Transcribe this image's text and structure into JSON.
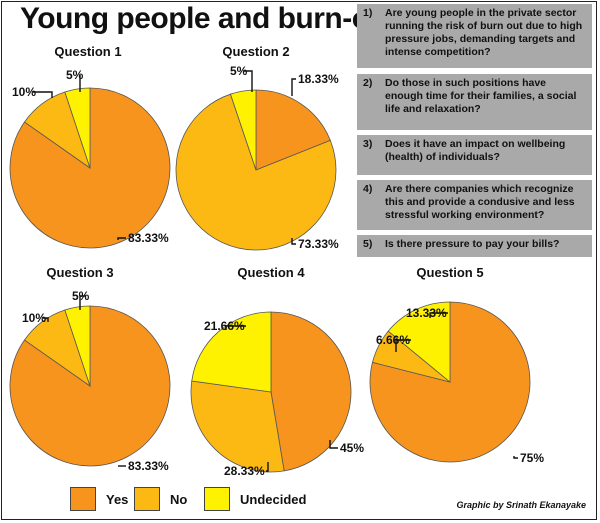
{
  "title": "Young people and burn-out",
  "questions": [
    {
      "num": "1)",
      "text": "Are young people in the private sector running the risk of burn out due to  high pressure jobs, demanding targets and intense competition?"
    },
    {
      "num": "2)",
      "text": "Do those in such positions have enough time for their families, a social life and relaxation?"
    },
    {
      "num": "3)",
      "text": "Does it have an impact on wellbeing (health) of individuals?"
    },
    {
      "num": "4)",
      "text": "Are there companies which recognize this and provide a condusive and less stressful working environment?"
    },
    {
      "num": "5)",
      "text": "Is there pressure to pay your bills?"
    }
  ],
  "legend": [
    {
      "label": "Yes",
      "color": "#f7941d"
    },
    {
      "label": "No",
      "color": "#fdb913"
    },
    {
      "label": "Undecided",
      "color": "#fff200"
    }
  ],
  "credit": "Graphic by Srinath Ekanayake",
  "chart_data": [
    {
      "type": "pie",
      "title": "Question 1",
      "categories": [
        "Yes",
        "No",
        "Undecided"
      ],
      "values": [
        83.33,
        10,
        5
      ],
      "labels": [
        "83.33%",
        "10%",
        "5%"
      ]
    },
    {
      "type": "pie",
      "title": "Question 2",
      "categories": [
        "Yes",
        "No",
        "Undecided"
      ],
      "values": [
        18.33,
        73.33,
        5
      ],
      "labels": [
        "18.33%",
        "73.33%",
        "5%"
      ]
    },
    {
      "type": "pie",
      "title": "Question 3",
      "categories": [
        "Yes",
        "No",
        "Undecided"
      ],
      "values": [
        83.33,
        10,
        5
      ],
      "labels": [
        "83.33%",
        "10%",
        "5%"
      ]
    },
    {
      "type": "pie",
      "title": "Question 4",
      "categories": [
        "Yes",
        "No",
        "Undecided"
      ],
      "values": [
        45,
        28.33,
        21.66
      ],
      "labels": [
        "45%",
        "28.33%",
        "21.66%"
      ]
    },
    {
      "type": "pie",
      "title": "Question 5",
      "categories": [
        "Yes",
        "No",
        "Undecided"
      ],
      "values": [
        75,
        6.66,
        13.33
      ],
      "labels": [
        "75%",
        "6.66%",
        "13.33%"
      ]
    }
  ]
}
